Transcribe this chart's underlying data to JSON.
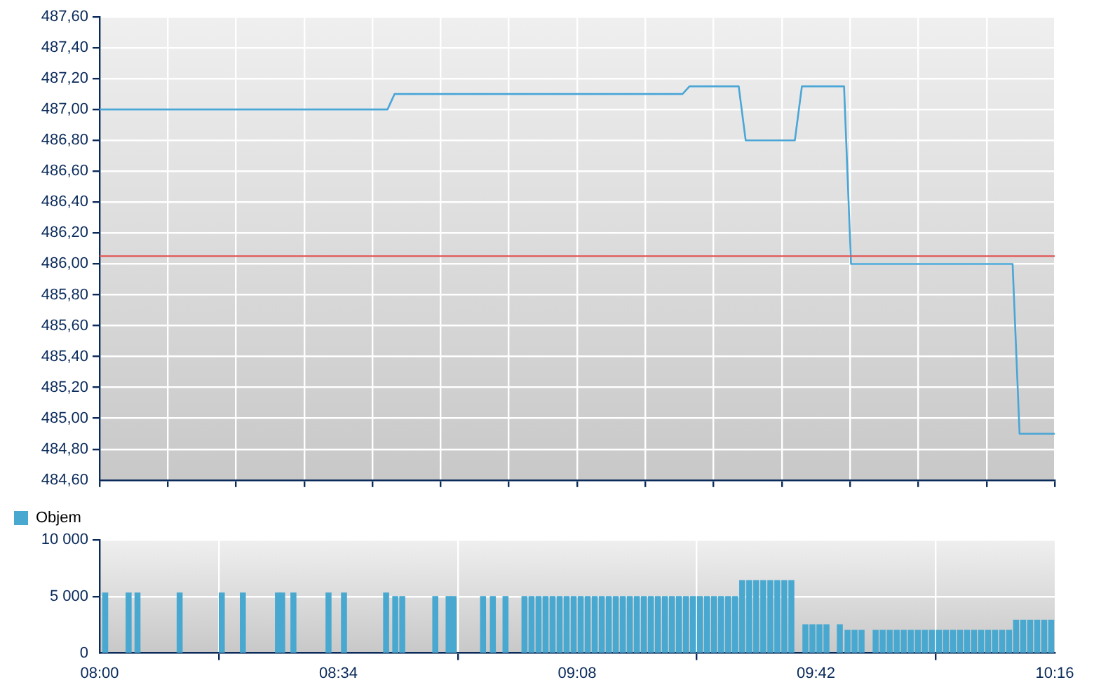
{
  "chart_data": [
    {
      "type": "line",
      "tick_labels": "y",
      "grid": true,
      "legend": false,
      "marker": "none",
      "line_style": "solid",
      "xlim": [
        8,
        10.2667
      ],
      "xticks": [
        {
          "value": 8,
          "label": null
        },
        {
          "value": 8.1619,
          "label": null
        },
        {
          "value": 8.3238,
          "label": null
        },
        {
          "value": 8.4857,
          "label": null
        },
        {
          "value": 8.6476,
          "label": null
        },
        {
          "value": 8.8095,
          "label": null
        },
        {
          "value": 8.9714,
          "label": null
        },
        {
          "value": 9.1333,
          "label": null
        },
        {
          "value": 9.2952,
          "label": null
        },
        {
          "value": 9.4571,
          "label": null
        },
        {
          "value": 9.619,
          "label": null
        },
        {
          "value": 9.781,
          "label": null
        },
        {
          "value": 9.9429,
          "label": null
        },
        {
          "value": 10.1048,
          "label": null
        },
        {
          "value": 10.2667,
          "label": null
        }
      ],
      "ylim": [
        484.6,
        487.6
      ],
      "yticks": [
        {
          "value": 484.6,
          "label": "484,60"
        },
        {
          "value": 484.8,
          "label": "484,80"
        },
        {
          "value": 485,
          "label": "485,00"
        },
        {
          "value": 485.2,
          "label": "485,20"
        },
        {
          "value": 485.4,
          "label": "485,40"
        },
        {
          "value": 485.6,
          "label": "485,60"
        },
        {
          "value": 485.8,
          "label": "485,80"
        },
        {
          "value": 486,
          "label": "486,00"
        },
        {
          "value": 486.2,
          "label": "486,20"
        },
        {
          "value": 486.4,
          "label": "486,40"
        },
        {
          "value": 486.6,
          "label": "486,60"
        },
        {
          "value": 486.8,
          "label": "486,80"
        },
        {
          "value": 487,
          "label": "487,00"
        },
        {
          "value": 487.2,
          "label": "487,20"
        },
        {
          "value": 487.4,
          "label": "487,40"
        },
        {
          "value": 487.6,
          "label": "487,60"
        }
      ],
      "ref_lines": [
        {
          "axis": "y",
          "value": 486.05,
          "color": "#e05555"
        }
      ],
      "series": [
        {
          "color": "#4aa6d6",
          "x": [
            8,
            8.6833,
            8.7,
            9.3833,
            9.4,
            9.5167,
            9.5333,
            9.65,
            9.6667,
            9.7667,
            9.7833,
            10.1667,
            10.1833,
            10.2667
          ],
          "values": [
            487,
            487,
            487.1,
            487.1,
            487.15,
            487.15,
            486.8,
            486.8,
            487.15,
            487.15,
            486,
            486,
            484.9,
            484.9
          ]
        }
      ]
    },
    {
      "type": "bar",
      "grid": true,
      "legend": "top left",
      "xlim": [
        8,
        10.2667
      ],
      "xticks": [
        {
          "value": 8,
          "label": "08:00"
        },
        {
          "value": 8.5667,
          "label": "08:34"
        },
        {
          "value": 9.1333,
          "label": "09:08"
        },
        {
          "value": 9.7,
          "label": "09:42"
        },
        {
          "value": 10.2667,
          "label": "10:16"
        }
      ],
      "ylim": [
        0,
        10000
      ],
      "yticks": [
        {
          "value": 0,
          "label": "0"
        },
        {
          "value": 5000,
          "label": "5 000"
        },
        {
          "value": 10000,
          "label": "10 000"
        }
      ],
      "series": [
        {
          "name": "Objem",
          "color": "#48a8d0",
          "x": [
            8.0133,
            8.0689,
            8.09,
            8.19,
            8.29,
            8.34,
            8.4233,
            8.4333,
            8.46,
            8.5433,
            8.58,
            8.68,
            8.7017,
            8.7183,
            8.7967,
            8.8283,
            8.84,
            8.91,
            8.9333,
            8.9633,
            9.0083,
            9.025,
            9.0417,
            9.0583,
            9.075,
            9.0917,
            9.1083,
            9.125,
            9.1417,
            9.1583,
            9.175,
            9.1917,
            9.2083,
            9.225,
            9.2417,
            9.2583,
            9.275,
            9.2917,
            9.3083,
            9.325,
            9.3417,
            9.3583,
            9.375,
            9.3917,
            9.4083,
            9.425,
            9.4417,
            9.4583,
            9.475,
            9.4917,
            9.5083,
            9.525,
            9.5417,
            9.5583,
            9.575,
            9.5917,
            9.6083,
            9.625,
            9.6417,
            9.675,
            9.6917,
            9.7083,
            9.725,
            9.7567,
            9.775,
            9.7917,
            9.8083,
            9.8417,
            9.8583,
            9.875,
            9.8917,
            9.9083,
            9.925,
            9.9417,
            9.9583,
            9.975,
            9.9917,
            10.0083,
            10.025,
            10.0417,
            10.0583,
            10.075,
            10.0917,
            10.1083,
            10.125,
            10.1417,
            10.1583,
            10.175,
            10.1917,
            10.2083,
            10.225,
            10.2417,
            10.2583
          ],
          "values": [
            5300,
            5300,
            5300,
            5300,
            5300,
            5300,
            5300,
            5300,
            5300,
            5300,
            5300,
            5300,
            5000,
            5000,
            5000,
            5000,
            5000,
            5000,
            5000,
            5000,
            5000,
            5000,
            5000,
            5000,
            5000,
            5000,
            5000,
            5000,
            5000,
            5000,
            5000,
            5000,
            5000,
            5000,
            5000,
            5000,
            5000,
            5000,
            5000,
            5000,
            5000,
            5000,
            5000,
            5000,
            5000,
            5000,
            5000,
            5000,
            5000,
            5000,
            5000,
            6400,
            6400,
            6400,
            6400,
            6400,
            6400,
            6400,
            6400,
            2500,
            2500,
            2500,
            2500,
            2500,
            2000,
            2000,
            2000,
            2000,
            2000,
            2000,
            2000,
            2000,
            2000,
            2000,
            2000,
            2000,
            2000,
            2000,
            2000,
            2000,
            2000,
            2000,
            2000,
            2000,
            2000,
            2000,
            2000,
            2900,
            2900,
            2900,
            2900,
            2900,
            2900
          ]
        }
      ]
    }
  ]
}
